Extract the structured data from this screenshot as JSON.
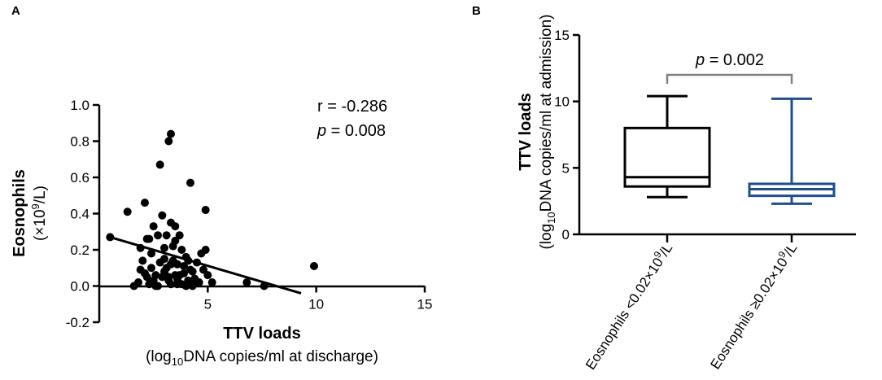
{
  "chart_data": [
    {
      "panel": "A",
      "type": "scatter",
      "xlabel": "TTV loads",
      "xlabel_sub": {
        "pre": "(log",
        "sub": "10",
        "post": "DNA copies/ml at discharge)"
      },
      "ylabel": "Eosnophils",
      "ylabel_sub": {
        "pre": "(×10",
        "sup": "9",
        "post": "/L)"
      },
      "xlim": [
        0,
        15
      ],
      "ylim": [
        -0.2,
        1.0
      ],
      "xticks": [
        5,
        10,
        15
      ],
      "yticks": [
        1.0,
        0.8,
        0.6,
        0.4,
        0.2,
        0.0,
        -0.2
      ],
      "xtick_labels": [
        "5",
        "10",
        "15"
      ],
      "ytick_labels": [
        "1.0",
        "0.8",
        "0.6",
        "0.4",
        "0.2",
        "0.0",
        "-0.2"
      ],
      "grid": false,
      "annotation": {
        "r_text": "r = -0.286",
        "p_italic": "p",
        "p_rest": " = 0.008"
      },
      "regression_line": {
        "x": [
          0.5,
          9.3
        ],
        "y": [
          0.27,
          -0.04
        ]
      },
      "points": {
        "x": [
          0.5,
          1.3,
          1.6,
          1.8,
          1.9,
          2.1,
          2.2,
          2.3,
          2.4,
          2.4,
          2.5,
          2.6,
          2.7,
          2.8,
          2.9,
          3.0,
          3.0,
          3.1,
          3.2,
          3.2,
          3.3,
          3.3,
          3.4,
          3.5,
          3.5,
          3.6,
          3.7,
          3.8,
          3.9,
          4.0,
          4.1,
          4.2,
          4.3,
          4.4,
          4.5,
          4.7,
          4.8,
          4.9,
          5.0,
          5.2,
          2.0,
          2.2,
          2.5,
          2.7,
          3.0,
          3.3,
          3.6,
          3.9,
          4.2,
          4.6,
          2.3,
          2.8,
          3.1,
          3.4,
          3.7,
          4.0,
          4.4,
          1.9,
          2.6,
          3.2,
          3.5,
          3.8,
          4.1,
          4.9,
          2.1,
          2.9,
          3.3,
          3.6,
          4.3,
          6.8,
          7.6,
          9.9
        ],
        "y": [
          0.27,
          0.41,
          0.0,
          0.02,
          0.09,
          0.46,
          0.26,
          0.26,
          0.1,
          0.18,
          0.33,
          0.06,
          0.28,
          0.67,
          0.39,
          0.21,
          0.15,
          0.1,
          0.8,
          0.05,
          0.84,
          0.35,
          0.14,
          0.25,
          0.06,
          0.12,
          0.28,
          0.2,
          0.07,
          0.16,
          0.03,
          0.57,
          0.0,
          0.02,
          0.13,
          0.18,
          0.09,
          0.42,
          0.06,
          0.02,
          0.14,
          0.05,
          0.03,
          0.0,
          0.08,
          0.01,
          0.04,
          0.11,
          0.09,
          0.02,
          0.01,
          0.13,
          0.28,
          0.22,
          0.06,
          0.0,
          0.04,
          0.21,
          0.0,
          0.03,
          0.33,
          0.01,
          0.14,
          0.2,
          0.07,
          0.05,
          0.12,
          0.01,
          0.08,
          0.02,
          0.0,
          0.11
        ]
      }
    },
    {
      "panel": "B",
      "type": "box",
      "ylabel": "TTV loads",
      "ylabel_sub": {
        "pre": "(log",
        "sub": "10",
        "post": "DNA copies/ml at admission)"
      },
      "ylim": [
        0,
        15
      ],
      "yticks": [
        15,
        10,
        5,
        0
      ],
      "ytick_labels": [
        "15",
        "10",
        "5",
        "0"
      ],
      "annotation": {
        "p_italic": "p",
        "p_rest": " = 0.002"
      },
      "groups": [
        {
          "label": {
            "pre": "Eosnophils <0.02×10",
            "sup": "9",
            "post": "/L"
          },
          "color": "#000000",
          "min": 2.8,
          "q1": 3.6,
          "median": 4.3,
          "q3": 8.0,
          "max": 10.4
        },
        {
          "label": {
            "pre": "Eosnophils ≥0.02×10",
            "sup": "9",
            "post": "/L"
          },
          "color": "#1f4e8c",
          "min": 2.3,
          "q1": 2.9,
          "median": 3.4,
          "q3": 3.8,
          "max": 10.2
        }
      ]
    }
  ]
}
